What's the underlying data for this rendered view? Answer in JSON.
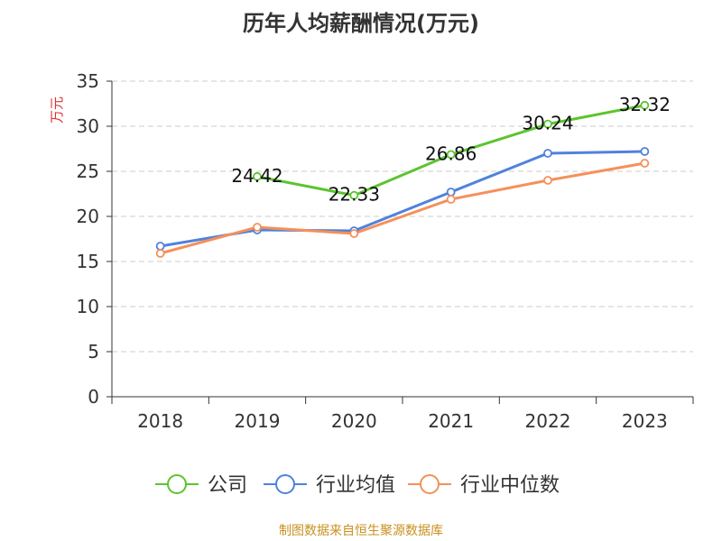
{
  "chart_data": {
    "type": "line",
    "title": "历年人均薪酬情况(万元)",
    "ylabel": "万元",
    "xlabel": "",
    "categories": [
      "2018",
      "2019",
      "2020",
      "2021",
      "2022",
      "2023"
    ],
    "ylim": [
      0,
      35
    ],
    "yticks": [
      0,
      5,
      10,
      15,
      20,
      25,
      30,
      35
    ],
    "grid": true,
    "legend_position": "bottom-center",
    "series": [
      {
        "name": "公司",
        "color": "#5cc42f",
        "values": [
          null,
          24.42,
          22.33,
          26.86,
          30.24,
          32.32
        ],
        "labels": [
          "",
          "24.42",
          "22.33",
          "26.86",
          "30.24",
          "32.32"
        ]
      },
      {
        "name": "行业均值",
        "color": "#4f82dc",
        "values": [
          16.7,
          18.5,
          18.4,
          22.7,
          27.0,
          27.2
        ],
        "labels": []
      },
      {
        "name": "行业中位数",
        "color": "#f5905a",
        "values": [
          15.9,
          18.8,
          18.1,
          21.9,
          24.0,
          25.9
        ],
        "labels": []
      }
    ]
  },
  "source": "制图数据来自恒生聚源数据库",
  "colors": {
    "axis": "#333333",
    "grid": "#cccccc",
    "ylabel": "#e03030",
    "source": "#c8901e"
  }
}
